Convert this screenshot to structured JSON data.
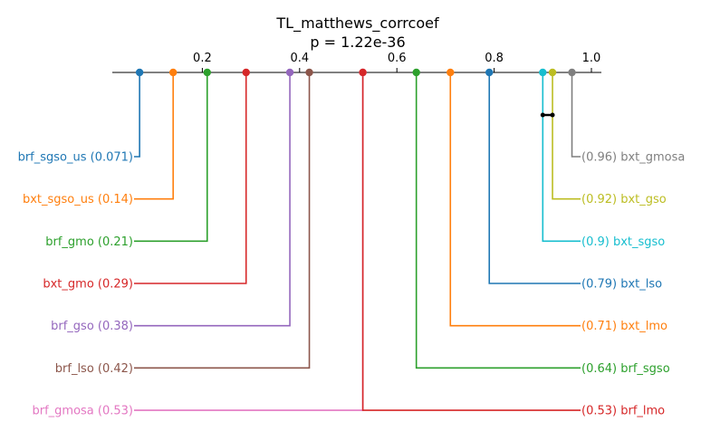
{
  "chart_data": {
    "type": "critical-difference",
    "title": "TL_matthews_corrcoef",
    "subtitle": "p = 1.22e-36",
    "axis": {
      "xlim": [
        0.0,
        1.0
      ],
      "ticks": [
        0.2,
        0.4,
        0.6,
        0.8,
        1.0
      ],
      "tick_labels": [
        "0.2",
        "0.4",
        "0.6",
        "0.8",
        "1.0"
      ]
    },
    "left_methods": [
      {
        "name": "brf_sgso_us",
        "value": 0.071,
        "label": "brf_sgso_us (0.071)",
        "color": "#1f77b4"
      },
      {
        "name": "bxt_sgso_us",
        "value": 0.14,
        "label": "bxt_sgso_us (0.14)",
        "color": "#ff7f0e"
      },
      {
        "name": "brf_gmo",
        "value": 0.21,
        "label": "brf_gmo (0.21)",
        "color": "#2ca02c"
      },
      {
        "name": "bxt_gmo",
        "value": 0.29,
        "label": "bxt_gmo (0.29)",
        "color": "#d62728"
      },
      {
        "name": "brf_gso",
        "value": 0.38,
        "label": "brf_gso (0.38)",
        "color": "#9467bd"
      },
      {
        "name": "brf_lso",
        "value": 0.42,
        "label": "brf_lso (0.42)",
        "color": "#8c564b"
      },
      {
        "name": "brf_gmosa",
        "value": 0.53,
        "label": "brf_gmosa (0.53)",
        "color": "#e377c2"
      }
    ],
    "right_methods": [
      {
        "name": "bxt_gmosa",
        "value": 0.96,
        "label": "(0.96) bxt_gmosa",
        "color": "#7f7f7f"
      },
      {
        "name": "bxt_gso",
        "value": 0.92,
        "label": "(0.92) bxt_gso",
        "color": "#bcbd22"
      },
      {
        "name": "bxt_sgso",
        "value": 0.9,
        "label": "(0.9) bxt_sgso",
        "color": "#17becf"
      },
      {
        "name": "bxt_lso",
        "value": 0.79,
        "label": "(0.79) bxt_lso",
        "color": "#1f77b4"
      },
      {
        "name": "bxt_lmo",
        "value": 0.71,
        "label": "(0.71) bxt_lmo",
        "color": "#ff7f0e"
      },
      {
        "name": "brf_sgso",
        "value": 0.64,
        "label": "(0.64) brf_sgso",
        "color": "#2ca02c"
      },
      {
        "name": "brf_lmo",
        "value": 0.53,
        "label": "(0.53) brf_lmo",
        "color": "#d62728"
      }
    ],
    "cliques": [
      {
        "from": 0.9,
        "to": 0.92
      }
    ]
  }
}
